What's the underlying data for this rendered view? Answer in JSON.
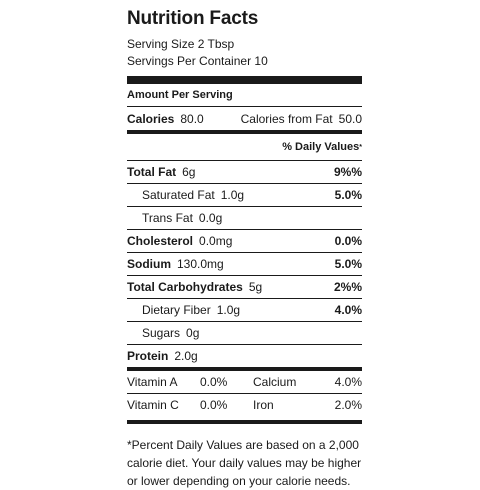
{
  "title": "Nutrition Facts",
  "serving_size": "Serving Size 2 Tbsp",
  "servings_per_container": "Servings Per Container 10",
  "amount_per_serving": "Amount Per Serving",
  "calories": {
    "label": "Calories",
    "value": "80.0",
    "from_fat_label": "Calories from Fat",
    "from_fat_value": "50.0"
  },
  "daily_value_header": "% Daily Values",
  "daily_value_marker": "*",
  "nutrients": [
    {
      "label": "Total Fat",
      "amount": "6g",
      "dv": "9%%"
    },
    {
      "label": "Saturated Fat",
      "amount": "1.0g",
      "dv": "5.0%"
    },
    {
      "label": "Trans Fat",
      "amount": "0.0g",
      "dv": ""
    },
    {
      "label": "Cholesterol",
      "amount": "0.0mg",
      "dv": "0.0%"
    },
    {
      "label": "Sodium",
      "amount": "130.0mg",
      "dv": "5.0%"
    },
    {
      "label": "Total Carbohydrates",
      "amount": "5g",
      "dv": "2%%"
    },
    {
      "label": "Dietary Fiber",
      "amount": "1.0g",
      "dv": "4.0%"
    },
    {
      "label": "Sugars",
      "amount": "0g",
      "dv": ""
    },
    {
      "label": "Protein",
      "amount": "2.0g",
      "dv": ""
    }
  ],
  "vitamins": [
    {
      "name_a": "Vitamin A",
      "value_a": "0.0%",
      "name_b": "Calcium",
      "value_b": "4.0%"
    },
    {
      "name_a": "Vitamin C",
      "value_a": "0.0%",
      "name_b": "Iron",
      "value_b": "2.0%"
    }
  ],
  "footnote": "*Percent Daily Values are based on a 2,000 calorie diet. Your daily values may be higher or lower depending on your calorie needs."
}
